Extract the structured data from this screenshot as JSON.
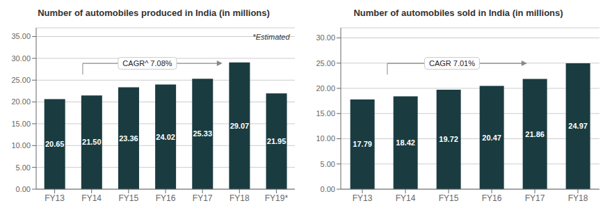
{
  "chart_data": [
    {
      "type": "bar",
      "title": "Number of automobiles produced in India (in millions)",
      "categories": [
        "FY13",
        "FY14",
        "FY15",
        "FY16",
        "FY17",
        "FY18",
        "FY19*"
      ],
      "values": [
        20.65,
        21.5,
        23.36,
        24.02,
        25.33,
        29.07,
        21.95
      ],
      "value_labels": [
        "20.65",
        "21.50",
        "23.36",
        "24.02",
        "25.33",
        "29.07",
        "21.95"
      ],
      "color": "#1a3c40",
      "ylim": [
        0,
        37
      ],
      "yticks": [
        {
          "value": 0,
          "label": "0.00"
        },
        {
          "value": 5,
          "label": "5.00"
        },
        {
          "value": 10,
          "label": "10.00"
        },
        {
          "value": 15,
          "label": "15.00"
        },
        {
          "value": 20,
          "label": "20.00"
        },
        {
          "value": 25,
          "label": "25.00"
        },
        {
          "value": 30,
          "label": "30.00"
        },
        {
          "value": 35,
          "label": "35.00"
        }
      ],
      "grid": true,
      "data_labels": true,
      "annotations": [
        "CAGR^ 7.08%",
        "*Estimated"
      ]
    },
    {
      "type": "bar",
      "title": "Number of automobiles sold in India (in millions)",
      "categories": [
        "FY13",
        "FY14",
        "FY15",
        "FY16",
        "FY17",
        "FY18"
      ],
      "values": [
        17.79,
        18.42,
        19.72,
        20.47,
        21.86,
        24.97
      ],
      "value_labels": [
        "17.79",
        "18.42",
        "19.72",
        "20.47",
        "21.86",
        "24.97"
      ],
      "color": "#1a3c40",
      "ylim": [
        0,
        32
      ],
      "yticks": [
        {
          "value": 0,
          "label": "0.00"
        },
        {
          "value": 5,
          "label": "5.00"
        },
        {
          "value": 10,
          "label": "10.00"
        },
        {
          "value": 15,
          "label": "15.00"
        },
        {
          "value": 20,
          "label": "20.00"
        },
        {
          "value": 25,
          "label": "25.00"
        },
        {
          "value": 30,
          "label": "30.00"
        }
      ],
      "grid": true,
      "data_labels": true,
      "annotations": [
        "CAGR 7.01%"
      ]
    }
  ]
}
